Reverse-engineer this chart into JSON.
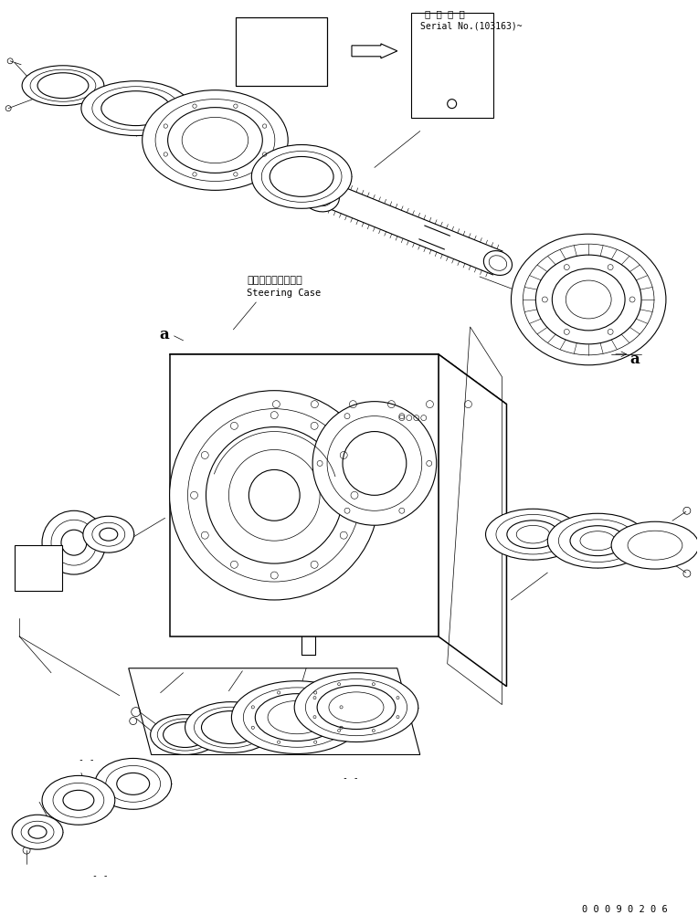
{
  "background_color": "#ffffff",
  "line_color": "#000000",
  "serial_text_jp": "適 用 号 機",
  "serial_text_en": "Serial No.(103163)~",
  "label_a": "a",
  "steering_case_jp": "ステアリングケース",
  "steering_case_en": "Steering Case",
  "part_number": "0 0 0 9 0 2 0 6",
  "fig_width": 7.64,
  "fig_height": 10.03,
  "dpi": 100
}
